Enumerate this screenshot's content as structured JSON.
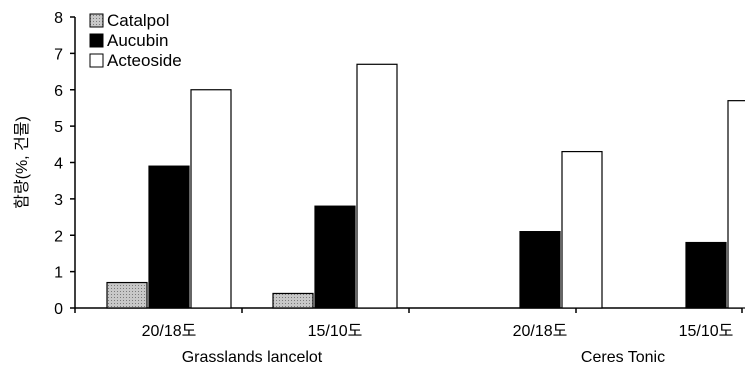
{
  "chart_data": {
    "type": "bar",
    "title": "",
    "xlabel": "",
    "ylabel": "함량(%, 건물)",
    "ylim": [
      0,
      8
    ],
    "yticks": [
      0,
      1,
      2,
      3,
      4,
      5,
      6,
      7,
      8
    ],
    "grid": false,
    "legend_position": "top-left",
    "categories": [
      "20/18도",
      "15/10도",
      "20/18도",
      "15/10도"
    ],
    "groups": [
      {
        "label": "Grasslands lancelot",
        "categories": [
          0,
          1
        ]
      },
      {
        "label": "Ceres Tonic",
        "categories": [
          2,
          3
        ]
      }
    ],
    "series": [
      {
        "name": "Catalpol",
        "values": [
          0.7,
          0.4,
          0,
          0
        ],
        "color": "#b0b0b0",
        "pattern": "dotted"
      },
      {
        "name": "Aucubin",
        "values": [
          3.9,
          2.8,
          2.1,
          1.8
        ],
        "color": "#000000"
      },
      {
        "name": "Acteoside",
        "values": [
          6.0,
          6.7,
          4.3,
          5.7
        ],
        "color": "#ffffff"
      }
    ]
  }
}
